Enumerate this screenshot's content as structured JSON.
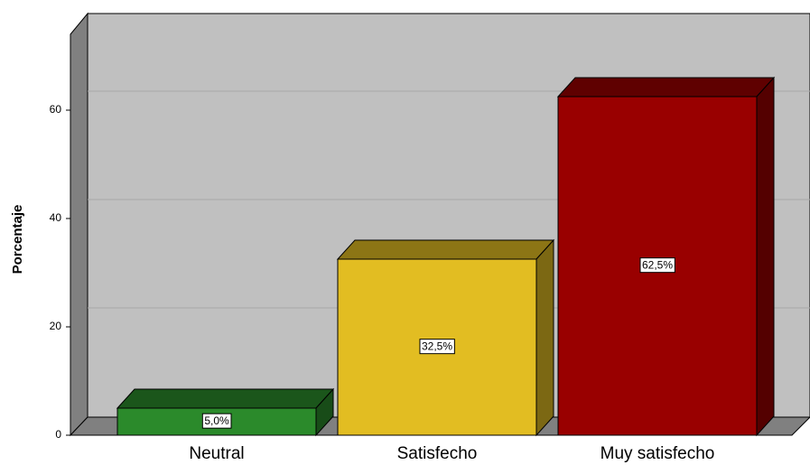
{
  "chart_data": {
    "type": "bar",
    "y_label": "Porcentaje",
    "categories": [
      "Neutral",
      "Satisfecho",
      "Muy satisfecho"
    ],
    "values": [
      5.0,
      32.5,
      62.5
    ],
    "value_labels": [
      "5,0%",
      "32,5%",
      "62,5%"
    ],
    "colors": [
      "#2b8a2b",
      "#e2bd22",
      "#990000"
    ],
    "ylim": [
      0,
      74
    ],
    "yticks": [
      0,
      20,
      40,
      60
    ],
    "grid": true
  }
}
